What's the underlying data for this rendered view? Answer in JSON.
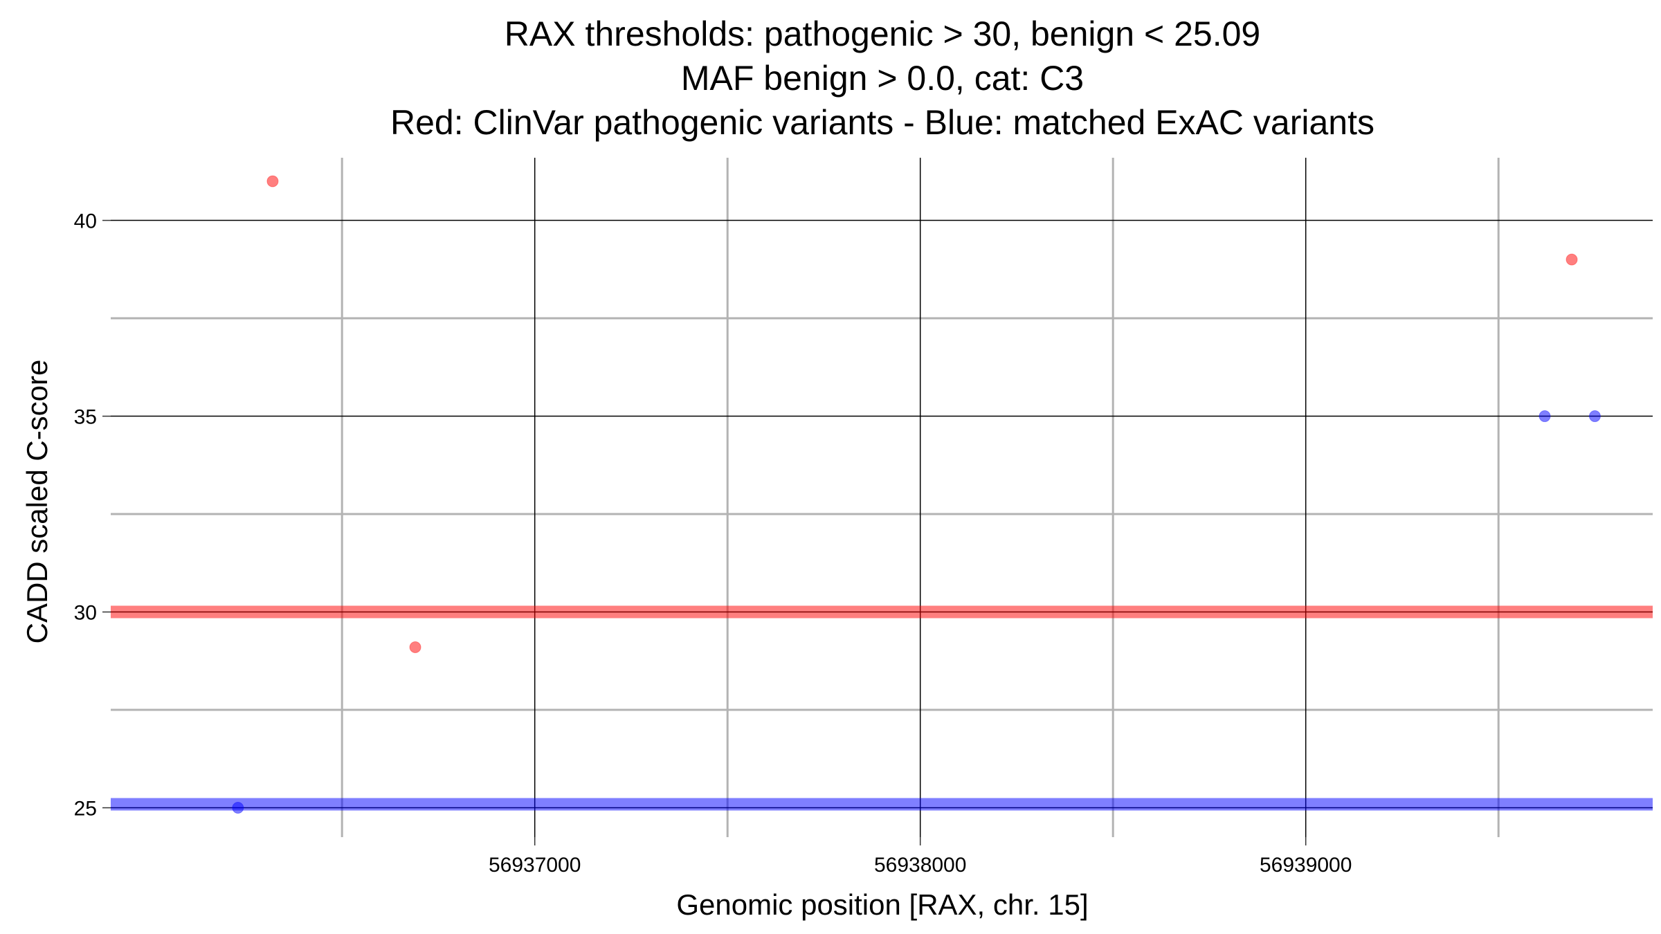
{
  "chart_data": {
    "type": "scatter",
    "title_lines": [
      "RAX thresholds: pathogenic > 30, benign < 25.09",
      "MAF benign > 0.0, cat: C3",
      "Red: ClinVar pathogenic variants - Blue: matched ExAC variants"
    ],
    "xlabel": "Genomic position [RAX, chr. 15]",
    "ylabel": "CADD scaled C-score",
    "xlim": [
      56935900,
      56939900
    ],
    "ylim": [
      24.25,
      41.6
    ],
    "x_ticks": [
      {
        "value": 56937000,
        "label": "56937000"
      },
      {
        "value": 56938000,
        "label": "56938000"
      },
      {
        "value": 56939000,
        "label": "56939000"
      }
    ],
    "x_minor_grid": [
      56936500,
      56937500,
      56938500,
      56939500
    ],
    "y_ticks": [
      {
        "value": 25,
        "label": "25"
      },
      {
        "value": 30,
        "label": "30"
      },
      {
        "value": 35,
        "label": "35"
      },
      {
        "value": 40,
        "label": "40"
      }
    ],
    "y_minor_grid": [
      27.5,
      32.5,
      37.5
    ],
    "grid": true,
    "legend": "none",
    "thresholds": [
      {
        "value": 30,
        "color": "#ff0000",
        "meaning": "pathogenic"
      },
      {
        "value": 25.09,
        "color": "#0000ff",
        "meaning": "benign"
      }
    ],
    "series": [
      {
        "color": "#ff0000",
        "points": [
          {
            "x": 56936320,
            "y": 41.0
          },
          {
            "x": 56936690,
            "y": 29.1
          },
          {
            "x": 56939690,
            "y": 39.0
          }
        ]
      },
      {
        "color": "#0000ff",
        "points": [
          {
            "x": 56936230,
            "y": 25.0
          },
          {
            "x": 56939620,
            "y": 35.0
          },
          {
            "x": 56939750,
            "y": 35.0
          }
        ]
      }
    ]
  }
}
